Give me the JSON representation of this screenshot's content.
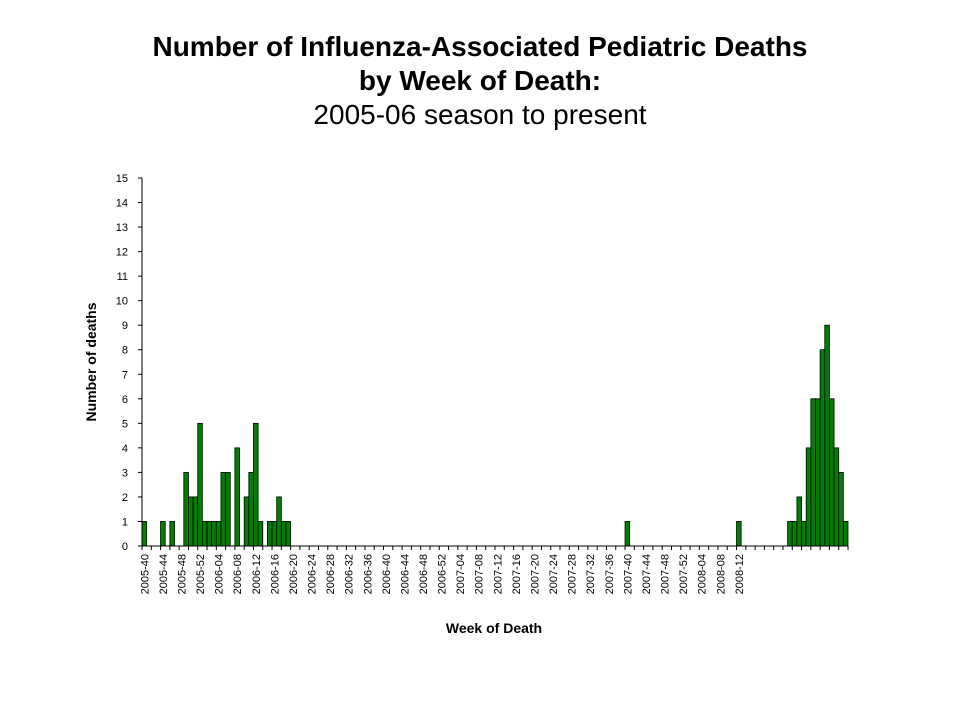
{
  "chart_data": {
    "type": "bar",
    "title_lines": [
      "Number of Influenza-Associated Pediatric Deaths",
      "by Week of Death:",
      "2005-06 season to present"
    ],
    "xlabel": "Week of Death",
    "ylabel": "Number of deaths",
    "ylim": [
      0,
      15
    ],
    "yticks": [
      0,
      1,
      2,
      3,
      4,
      5,
      6,
      7,
      8,
      9,
      10,
      11,
      12,
      13,
      14,
      15
    ],
    "tick_labels": [
      "2005-40",
      "2005-44",
      "2005-48",
      "2005-52",
      "2006-04",
      "2006-08",
      "2006-12",
      "2006-16",
      "2006-20",
      "2006-24",
      "2006-28",
      "2006-32",
      "2006-36",
      "2006-40",
      "2006-44",
      "2006-48",
      "2006-52",
      "2007-04",
      "2007-08",
      "2007-12",
      "2007-16",
      "2007-20",
      "2007-24",
      "2007-28",
      "2007-32",
      "2007-36",
      "2007-40",
      "2007-44",
      "2007-48",
      "2007-52",
      "2008-04",
      "2008-08",
      "2008-12"
    ],
    "bar_color": "#008000",
    "series": [
      {
        "name": "Deaths",
        "values": [
          1,
          0,
          0,
          0,
          1,
          0,
          1,
          0,
          0,
          3,
          2,
          2,
          5,
          1,
          1,
          1,
          1,
          3,
          3,
          0,
          4,
          0,
          2,
          3,
          5,
          1,
          0,
          1,
          1,
          2,
          1,
          1,
          0,
          0,
          0,
          0,
          0,
          0,
          0,
          0,
          0,
          0,
          0,
          0,
          0,
          0,
          0,
          0,
          0,
          0,
          0,
          0,
          0,
          0,
          0,
          0,
          0,
          0,
          0,
          0,
          0,
          0,
          0,
          0,
          0,
          0,
          0,
          0,
          0,
          0,
          0,
          0,
          0,
          0,
          0,
          0,
          0,
          0,
          0,
          0,
          0,
          0,
          0,
          0,
          0,
          0,
          0,
          0,
          0,
          0,
          0,
          0,
          0,
          0,
          0,
          0,
          0,
          0,
          0,
          0,
          0,
          0,
          0,
          0,
          1,
          0,
          0,
          0,
          0,
          0,
          0,
          0,
          0,
          0,
          0,
          0,
          0,
          0,
          0,
          0,
          0,
          0,
          0,
          0,
          0,
          0,
          0,
          0,
          1,
          0,
          0,
          0,
          0,
          0,
          0,
          0,
          0,
          0,
          0,
          1,
          1,
          2,
          1,
          4,
          6,
          6,
          8,
          9,
          6,
          4,
          3,
          1
        ]
      }
    ]
  }
}
